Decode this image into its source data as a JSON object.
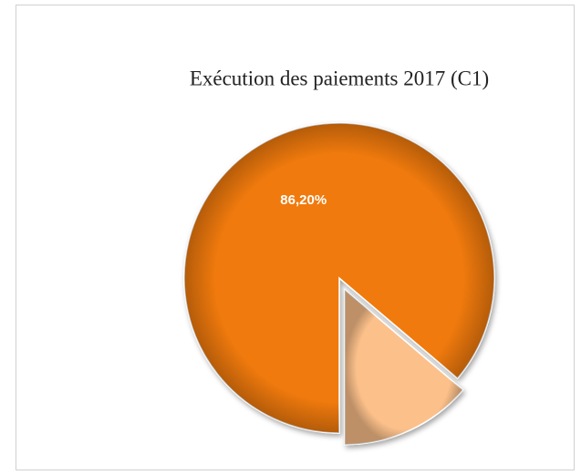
{
  "chart_data": {
    "type": "pie",
    "title": "Exécution des paiements 2017 (C1)",
    "values": [
      86.2,
      13.8
    ],
    "value_labels": [
      "86,20%",
      null
    ],
    "colors": [
      "#f07a10",
      "#fcc08a"
    ],
    "exploded": [
      false,
      true
    ]
  }
}
